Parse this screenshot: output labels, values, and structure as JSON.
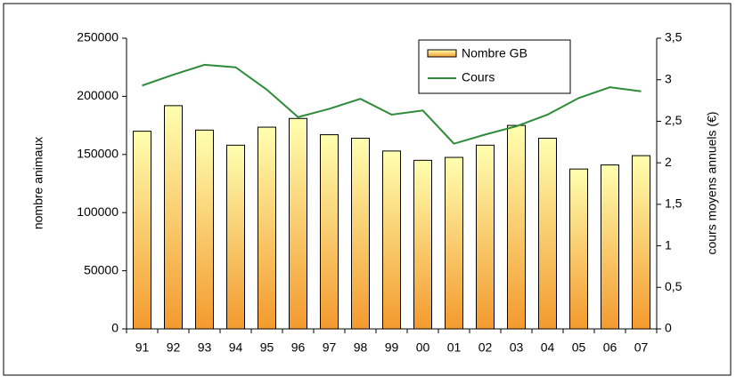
{
  "chart_data": {
    "type": "bar",
    "categories": [
      "91",
      "92",
      "93",
      "94",
      "95",
      "96",
      "97",
      "98",
      "99",
      "00",
      "01",
      "02",
      "03",
      "04",
      "05",
      "06",
      "07"
    ],
    "series": [
      {
        "name": "Nombre GB",
        "color": "#f39a2e",
        "type": "bar",
        "values": [
          170000,
          192000,
          171000,
          158000,
          173500,
          181000,
          167000,
          164000,
          153000,
          145000,
          147500,
          158000,
          175000,
          164000,
          137500,
          141000,
          149000
        ]
      },
      {
        "name": "Cours",
        "color": "#2e8b3a",
        "type": "line",
        "axis": "y2",
        "values": [
          2.93,
          3.06,
          3.18,
          3.15,
          2.88,
          2.55,
          2.65,
          2.77,
          2.58,
          2.63,
          2.23,
          2.34,
          2.44,
          2.58,
          2.78,
          2.91,
          2.86
        ]
      }
    ],
    "ylabel": "nombre animaux",
    "y2label": "cours moyens annuels (€)",
    "ylim": [
      0,
      250000
    ],
    "yticks": [
      0,
      50000,
      100000,
      150000,
      200000,
      250000
    ],
    "y2lim": [
      0,
      3.5
    ],
    "y2ticks": [
      0,
      {
        "value": 0.5,
        "label": "0,5"
      },
      1,
      {
        "value": 1.5,
        "label": "1,5"
      },
      2,
      {
        "value": 2.5,
        "label": "2,5"
      },
      3,
      {
        "value": 3.5,
        "label": "3,5"
      }
    ],
    "legend": "top-right"
  }
}
